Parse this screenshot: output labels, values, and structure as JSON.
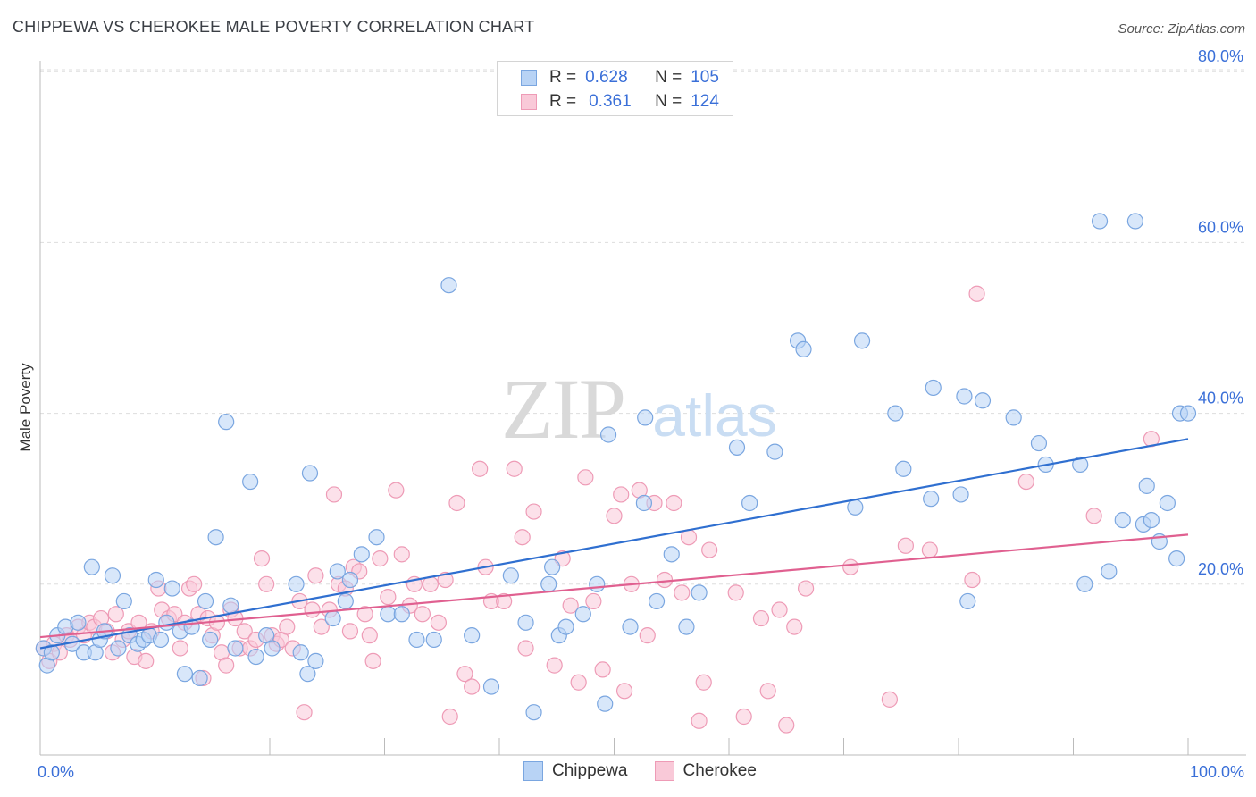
{
  "title": "CHIPPEWA VS CHEROKEE MALE POVERTY CORRELATION CHART",
  "source": "Source: ZipAtlas.com",
  "watermark": {
    "zip": "ZIP",
    "atlas": "atlas"
  },
  "legend": {
    "r_label": "R =",
    "n_label": "N =",
    "rows": [
      {
        "r": "0.628",
        "n": "105"
      },
      {
        "r": "0.361",
        "n": "124"
      }
    ]
  },
  "colors": {
    "chippewa_fill": "#b8d3f5",
    "chippewa_stroke": "#7aa6e0",
    "chippewa_line": "#2f6fd0",
    "cherokee_fill": "#f9c9d8",
    "cherokee_stroke": "#ee9bb6",
    "cherokee_line": "#e06090",
    "axis_text": "#3a6fd8",
    "grid": "#dddddd"
  },
  "chart_data": {
    "type": "scatter",
    "title": "CHIPPEWA VS CHEROKEE MALE POVERTY CORRELATION CHART",
    "xlabel": "",
    "ylabel": "Male Poverty",
    "xlim": [
      0,
      100
    ],
    "ylim": [
      0,
      85
    ],
    "x_tick_labels": [
      "0.0%",
      "100.0%"
    ],
    "y_ticks": [
      20,
      40,
      60,
      80
    ],
    "y_tick_labels": [
      "20.0%",
      "40.0%",
      "60.0%",
      "80.0%"
    ],
    "grid": true,
    "series": [
      {
        "name": "Chippewa",
        "R": 0.628,
        "N": 105,
        "trend": {
          "x": [
            0,
            100
          ],
          "y": [
            12.5,
            37.0
          ]
        },
        "points": [
          [
            0.3,
            12.5
          ],
          [
            0.6,
            10.5
          ],
          [
            1.0,
            12.0
          ],
          [
            1.5,
            14.0
          ],
          [
            2.2,
            15.0
          ],
          [
            2.8,
            13.0
          ],
          [
            3.3,
            15.5
          ],
          [
            3.8,
            12.0
          ],
          [
            4.5,
            22.0
          ],
          [
            4.8,
            12.0
          ],
          [
            5.2,
            13.5
          ],
          [
            5.6,
            14.5
          ],
          [
            6.3,
            21.0
          ],
          [
            6.8,
            12.5
          ],
          [
            7.3,
            18.0
          ],
          [
            7.8,
            14.0
          ],
          [
            8.5,
            13.0
          ],
          [
            9.0,
            13.5
          ],
          [
            9.5,
            14.0
          ],
          [
            10.1,
            20.5
          ],
          [
            10.5,
            13.5
          ],
          [
            11.0,
            15.5
          ],
          [
            11.5,
            19.5
          ],
          [
            12.2,
            14.5
          ],
          [
            12.6,
            9.5
          ],
          [
            13.2,
            15.0
          ],
          [
            13.9,
            9.0
          ],
          [
            14.4,
            18.0
          ],
          [
            14.8,
            13.5
          ],
          [
            15.3,
            25.5
          ],
          [
            16.2,
            39.0
          ],
          [
            16.6,
            17.5
          ],
          [
            17.0,
            12.5
          ],
          [
            18.3,
            32.0
          ],
          [
            18.8,
            11.5
          ],
          [
            19.7,
            14.0
          ],
          [
            20.2,
            12.5
          ],
          [
            22.3,
            20.0
          ],
          [
            22.7,
            12.0
          ],
          [
            23.3,
            9.5
          ],
          [
            23.5,
            33.0
          ],
          [
            24.0,
            11.0
          ],
          [
            25.5,
            16.0
          ],
          [
            25.9,
            21.5
          ],
          [
            26.6,
            18.0
          ],
          [
            27.0,
            20.5
          ],
          [
            28.0,
            23.5
          ],
          [
            29.3,
            25.5
          ],
          [
            30.3,
            16.5
          ],
          [
            31.5,
            16.5
          ],
          [
            32.8,
            13.5
          ],
          [
            34.3,
            13.5
          ],
          [
            35.6,
            55.0
          ],
          [
            37.6,
            14.0
          ],
          [
            39.3,
            8.0
          ],
          [
            41.0,
            21.0
          ],
          [
            42.3,
            15.5
          ],
          [
            43.0,
            5.0
          ],
          [
            44.3,
            20.0
          ],
          [
            44.6,
            22.0
          ],
          [
            45.2,
            14.0
          ],
          [
            45.8,
            15.0
          ],
          [
            47.3,
            16.5
          ],
          [
            48.5,
            20.0
          ],
          [
            49.2,
            6.0
          ],
          [
            49.5,
            37.5
          ],
          [
            51.4,
            15.0
          ],
          [
            52.6,
            29.5
          ],
          [
            52.7,
            39.5
          ],
          [
            53.7,
            18.0
          ],
          [
            55.0,
            23.5
          ],
          [
            56.3,
            15.0
          ],
          [
            57.4,
            19.0
          ],
          [
            60.7,
            36.0
          ],
          [
            61.8,
            29.5
          ],
          [
            64.0,
            35.5
          ],
          [
            66.0,
            48.5
          ],
          [
            66.5,
            47.5
          ],
          [
            71.0,
            29.0
          ],
          [
            71.6,
            48.5
          ],
          [
            74.5,
            40.0
          ],
          [
            75.2,
            33.5
          ],
          [
            77.6,
            30.0
          ],
          [
            77.8,
            43.0
          ],
          [
            80.2,
            30.5
          ],
          [
            80.5,
            42.0
          ],
          [
            80.8,
            18.0
          ],
          [
            82.1,
            41.5
          ],
          [
            84.8,
            39.5
          ],
          [
            87.0,
            36.5
          ],
          [
            87.6,
            34.0
          ],
          [
            90.6,
            34.0
          ],
          [
            91.0,
            20.0
          ],
          [
            92.3,
            62.5
          ],
          [
            93.1,
            21.5
          ],
          [
            94.3,
            27.5
          ],
          [
            95.4,
            62.5
          ],
          [
            96.1,
            27.0
          ],
          [
            96.4,
            31.5
          ],
          [
            96.8,
            27.5
          ],
          [
            97.5,
            25.0
          ],
          [
            98.2,
            29.5
          ],
          [
            99.0,
            23.0
          ],
          [
            99.3,
            40.0
          ],
          [
            100.0,
            40.0
          ]
        ]
      },
      {
        "name": "Cherokee",
        "R": 0.361,
        "N": 124,
        "trend": {
          "x": [
            0,
            100
          ],
          "y": [
            13.8,
            25.8
          ]
        },
        "points": [
          [
            0.3,
            12.5
          ],
          [
            0.8,
            11.0
          ],
          [
            1.2,
            13.0
          ],
          [
            1.7,
            12.0
          ],
          [
            2.3,
            14.0
          ],
          [
            2.6,
            13.5
          ],
          [
            3.3,
            15.0
          ],
          [
            3.8,
            14.0
          ],
          [
            4.3,
            15.5
          ],
          [
            4.7,
            15.0
          ],
          [
            5.3,
            16.0
          ],
          [
            5.8,
            14.5
          ],
          [
            6.3,
            12.0
          ],
          [
            6.6,
            16.5
          ],
          [
            7.2,
            13.5
          ],
          [
            7.7,
            14.5
          ],
          [
            8.2,
            11.5
          ],
          [
            8.6,
            15.5
          ],
          [
            9.2,
            11.0
          ],
          [
            9.7,
            14.5
          ],
          [
            10.3,
            19.5
          ],
          [
            10.6,
            17.0
          ],
          [
            11.2,
            16.0
          ],
          [
            11.7,
            16.5
          ],
          [
            12.2,
            12.5
          ],
          [
            12.6,
            15.5
          ],
          [
            13.0,
            19.5
          ],
          [
            13.4,
            20.0
          ],
          [
            13.8,
            16.5
          ],
          [
            14.2,
            9.0
          ],
          [
            14.6,
            16.0
          ],
          [
            15.0,
            14.0
          ],
          [
            15.4,
            15.5
          ],
          [
            15.8,
            12.0
          ],
          [
            16.2,
            10.5
          ],
          [
            16.6,
            17.0
          ],
          [
            17.0,
            16.0
          ],
          [
            17.4,
            12.5
          ],
          [
            17.8,
            14.5
          ],
          [
            18.3,
            12.5
          ],
          [
            18.8,
            13.5
          ],
          [
            19.3,
            23.0
          ],
          [
            19.7,
            20.0
          ],
          [
            20.2,
            14.0
          ],
          [
            20.6,
            13.0
          ],
          [
            21.0,
            13.5
          ],
          [
            21.5,
            15.0
          ],
          [
            22.0,
            12.5
          ],
          [
            22.6,
            18.0
          ],
          [
            23.0,
            5.0
          ],
          [
            23.7,
            17.0
          ],
          [
            24.0,
            21.0
          ],
          [
            24.5,
            15.0
          ],
          [
            25.2,
            17.0
          ],
          [
            25.6,
            30.5
          ],
          [
            26.0,
            20.0
          ],
          [
            26.6,
            19.5
          ],
          [
            27.0,
            14.5
          ],
          [
            27.3,
            22.0
          ],
          [
            27.8,
            21.5
          ],
          [
            28.3,
            16.5
          ],
          [
            28.7,
            14.0
          ],
          [
            29.0,
            11.0
          ],
          [
            29.6,
            23.0
          ],
          [
            30.3,
            18.5
          ],
          [
            31.0,
            31.0
          ],
          [
            31.5,
            23.5
          ],
          [
            32.2,
            17.5
          ],
          [
            32.6,
            20.0
          ],
          [
            33.3,
            16.5
          ],
          [
            34.0,
            20.0
          ],
          [
            34.7,
            15.5
          ],
          [
            35.3,
            20.5
          ],
          [
            35.7,
            4.5
          ],
          [
            36.3,
            29.5
          ],
          [
            37.0,
            9.5
          ],
          [
            37.6,
            8.0
          ],
          [
            38.3,
            33.5
          ],
          [
            38.8,
            22.0
          ],
          [
            39.3,
            18.0
          ],
          [
            40.4,
            18.0
          ],
          [
            41.3,
            33.5
          ],
          [
            42.0,
            25.5
          ],
          [
            42.3,
            12.5
          ],
          [
            43.0,
            28.5
          ],
          [
            44.8,
            10.5
          ],
          [
            45.5,
            23.0
          ],
          [
            46.2,
            17.5
          ],
          [
            46.9,
            8.5
          ],
          [
            47.5,
            32.5
          ],
          [
            48.2,
            18.0
          ],
          [
            49.0,
            10.0
          ],
          [
            50.0,
            28.0
          ],
          [
            50.6,
            30.5
          ],
          [
            50.9,
            7.5
          ],
          [
            51.5,
            20.0
          ],
          [
            52.2,
            31.0
          ],
          [
            52.9,
            14.0
          ],
          [
            53.5,
            29.5
          ],
          [
            54.4,
            20.5
          ],
          [
            55.2,
            29.5
          ],
          [
            55.9,
            19.0
          ],
          [
            56.5,
            25.5
          ],
          [
            57.4,
            4.0
          ],
          [
            57.8,
            8.5
          ],
          [
            58.3,
            24.0
          ],
          [
            60.6,
            19.0
          ],
          [
            61.3,
            4.5
          ],
          [
            62.8,
            16.0
          ],
          [
            63.4,
            7.5
          ],
          [
            64.4,
            17.0
          ],
          [
            65.0,
            3.5
          ],
          [
            65.7,
            15.0
          ],
          [
            66.7,
            19.5
          ],
          [
            70.6,
            22.0
          ],
          [
            74.0,
            6.5
          ],
          [
            75.4,
            24.5
          ],
          [
            77.5,
            24.0
          ],
          [
            81.2,
            20.5
          ],
          [
            81.6,
            54.0
          ],
          [
            85.9,
            32.0
          ],
          [
            91.8,
            28.0
          ],
          [
            96.8,
            37.0
          ]
        ]
      }
    ]
  },
  "bottom_legend": [
    "Chippewa",
    "Cherokee"
  ]
}
